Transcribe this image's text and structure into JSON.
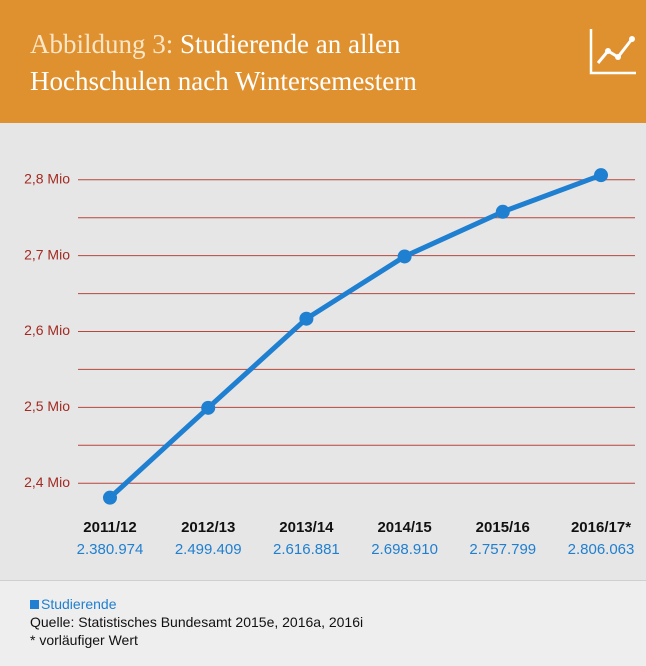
{
  "chart_data": {
    "type": "line",
    "title_label": "Abbildung 3:",
    "title": "Studierende an allen Hochschulen nach Wintersemestern",
    "categories": [
      "2011/12",
      "2012/13",
      "2013/14",
      "2014/15",
      "2015/16",
      "2016/17*"
    ],
    "series": [
      {
        "name": "Studierende",
        "color": "#1f7fd0",
        "values": [
          2380974,
          2499409,
          2616881,
          2698910,
          2757799,
          2806063
        ],
        "value_labels": [
          "2.380.974",
          "2.499.409",
          "2.616.881",
          "2.698.910",
          "2.757.799",
          "2.806.063"
        ]
      }
    ],
    "ylim": [
      2370000,
      2830000
    ],
    "yticks": [
      {
        "value": 2400000,
        "label": "2,4 Mio"
      },
      {
        "value": 2500000,
        "label": "2,5 Mio"
      },
      {
        "value": 2600000,
        "label": "2,6 Mio"
      },
      {
        "value": 2700000,
        "label": "2,7 Mio"
      },
      {
        "value": 2800000,
        "label": "2,8 Mio"
      }
    ],
    "minor_yticks": [
      2450000,
      2550000,
      2650000,
      2750000
    ],
    "grid": true,
    "source": "Quelle: Statistisches Bundesamt 2015e, 2016a, 2016i",
    "note": "* vorläufiger Wert"
  }
}
